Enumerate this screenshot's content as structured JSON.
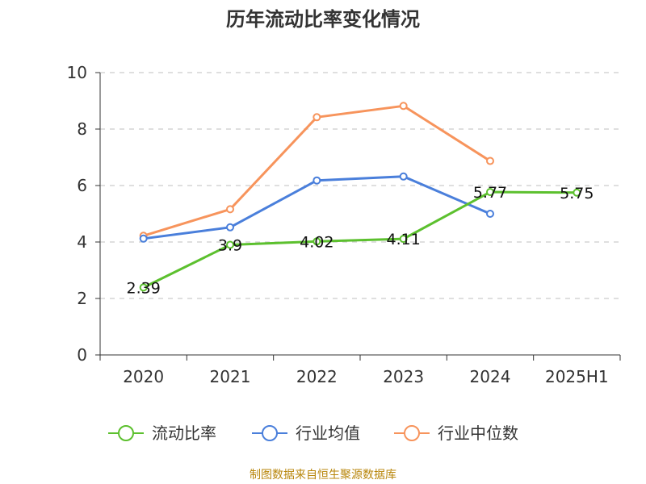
{
  "title": "历年流动比率变化情况",
  "source_note": "制图数据来自恒生聚源数据库",
  "chart_data": {
    "type": "line",
    "title": "历年流动比率变化情况",
    "categories": [
      "2020",
      "2021",
      "2022",
      "2023",
      "2024",
      "2025H1"
    ],
    "ylim": [
      0,
      10
    ],
    "yticks": [
      0,
      2,
      4,
      6,
      8,
      10
    ],
    "grid": true,
    "legend_position": "bottom",
    "series": [
      {
        "name": "流动比率",
        "color": "#5cc02e",
        "values": [
          2.39,
          3.9,
          4.02,
          4.11,
          5.77,
          5.75
        ],
        "labels": [
          "2.39",
          "3.9",
          "4.02",
          "4.11",
          "5.77",
          "5.75"
        ]
      },
      {
        "name": "行业均值",
        "color": "#4a7fdb",
        "values": [
          4.12,
          4.52,
          6.18,
          6.32,
          5.0,
          null
        ]
      },
      {
        "name": "行业中位数",
        "color": "#f7945c",
        "values": [
          4.22,
          5.16,
          8.42,
          8.82,
          6.87,
          null
        ]
      }
    ]
  }
}
